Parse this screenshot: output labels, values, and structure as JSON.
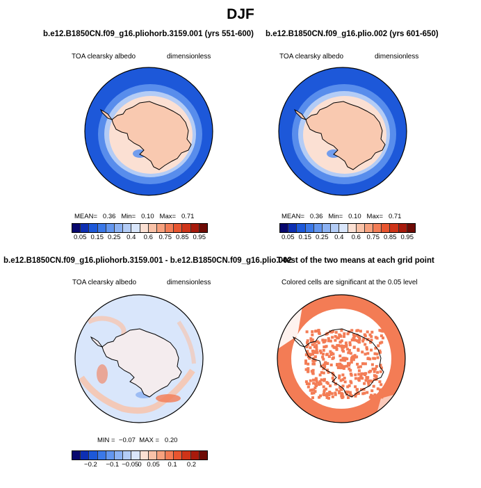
{
  "main_title": "DJF",
  "panels": {
    "p1": {
      "title": "b.e12.B1850CN.f09_g16.pliohorb.3159.001 (yrs 551-600)",
      "left_label": "TOA clearsky albedo",
      "right_label": "dimensionless",
      "mean_label": "MEAN=",
      "mean_value": "0.36",
      "min_label": "Min=",
      "min_value": "0.10",
      "max_label": "Max=",
      "max_value": "0.71"
    },
    "p2": {
      "title": "b.e12.B1850CN.f09_g16.plio.002 (yrs 601-650)",
      "left_label": "TOA clearsky albedo",
      "right_label": "dimensionless",
      "mean_label": "MEAN=",
      "mean_value": "0.36",
      "min_label": "Min=",
      "min_value": "0.10",
      "max_label": "Max=",
      "max_value": "0.71"
    },
    "p3": {
      "title": "b.e12.B1850CN.f09_g16.pliohorb.3159.001 - b.e12.B1850CN.f09_g16.plio.002",
      "left_label": "TOA clearsky albedo",
      "right_label": "dimensionless",
      "min_label": "MIN =",
      "min_value": "−0.07",
      "max_label": "MAX =",
      "max_value": "0.20"
    },
    "p4": {
      "title": "T-test of the two means at each grid point",
      "subtitle": "Colored cells are significant at the 0.05 level"
    }
  },
  "colorbar_abs": {
    "colors": [
      "#08086e",
      "#0d2fb3",
      "#1d58d9",
      "#3b78e8",
      "#6396ef",
      "#8cb2f3",
      "#b3ccf6",
      "#d9e6fb",
      "#fbe0d3",
      "#f9c2a8",
      "#f7a17e",
      "#f37c55",
      "#e8552f",
      "#cf3418",
      "#a81a0c",
      "#6e0b05"
    ],
    "labels": [
      "0.05",
      "0.15",
      "0.25",
      "0.4",
      "0.6",
      "0.75",
      "0.85",
      "0.95"
    ]
  },
  "colorbar_diff": {
    "colors": [
      "#08086e",
      "#0d2fb3",
      "#1d58d9",
      "#3b78e8",
      "#6396ef",
      "#8cb2f3",
      "#b3ccf6",
      "#d9e6fb",
      "#fbe0d3",
      "#f9c2a8",
      "#f7a17e",
      "#f37c55",
      "#e8552f",
      "#cf3418",
      "#a81a0c",
      "#6e0b05"
    ],
    "labels": [
      "−0.2",
      "−0.1",
      "−0.05",
      "0",
      "0.05",
      "0.1",
      "0.2"
    ]
  },
  "map_colors": {
    "ocean_deep": "#1d58d9",
    "ocean_mid": "#6396ef",
    "ocean_light": "#b3ccf6",
    "ice": "#fbe0d3",
    "land": "#f9c9b0",
    "diff_bg": "#d9e6fb",
    "diff_pos": "#f9c2a8",
    "diff_neg": "#8cb2f3",
    "sig": "#f37c55"
  }
}
